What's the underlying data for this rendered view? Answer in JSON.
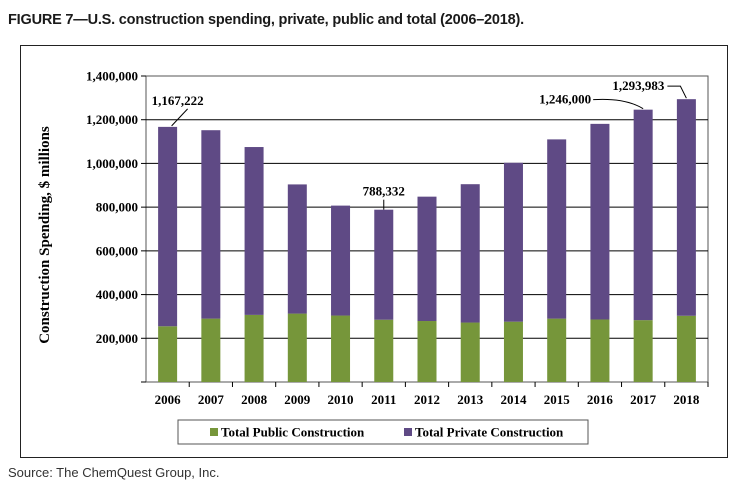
{
  "figure_title": "FIGURE 7—U.S. construction spending, private, public and total (2006–2018).",
  "source": "Source: The ChemQuest Group, Inc.",
  "colors": {
    "public": "#76963a",
    "private": "#5f4a85",
    "grid": "#000000"
  },
  "chart_data": {
    "type": "bar",
    "stacked": true,
    "title": "",
    "ylabel": "Construction Spending, $ millions",
    "xlabel": "",
    "ylim": [
      0,
      1400000
    ],
    "yticks": [
      0,
      200000,
      400000,
      600000,
      800000,
      1000000,
      1200000,
      1400000
    ],
    "ytick_labels": [
      "",
      "200,000",
      "400,000",
      "600,000",
      "800,000",
      "1,000,000",
      "1,200,000",
      "1,400,000"
    ],
    "categories": [
      "2006",
      "2007",
      "2008",
      "2009",
      "2010",
      "2011",
      "2012",
      "2013",
      "2014",
      "2015",
      "2016",
      "2017",
      "2018"
    ],
    "series": [
      {
        "name": "Total Public Construction",
        "values": [
          255000,
          290000,
          307000,
          313000,
          304000,
          285000,
          279000,
          272000,
          276000,
          290000,
          286000,
          283000,
          303000
        ]
      },
      {
        "name": "Total Private Construction",
        "values": [
          912222,
          862000,
          768000,
          591000,
          503000,
          503332,
          569000,
          633000,
          727000,
          820000,
          895000,
          963000,
          990983
        ]
      }
    ],
    "totals": [
      1167222,
      1152000,
      1075000,
      904000,
      807000,
      788332,
      848000,
      905000,
      1003000,
      1110000,
      1181000,
      1246000,
      1293983
    ],
    "annotations": [
      {
        "index": 0,
        "label": "1,167,222"
      },
      {
        "index": 5,
        "label": "788,332"
      },
      {
        "index": 11,
        "label": "1,246,000"
      },
      {
        "index": 12,
        "label": "1,293,983"
      }
    ],
    "legend": [
      "Total Public Construction",
      "Total Private Construction"
    ],
    "legend_position": "bottom",
    "grid": true
  }
}
